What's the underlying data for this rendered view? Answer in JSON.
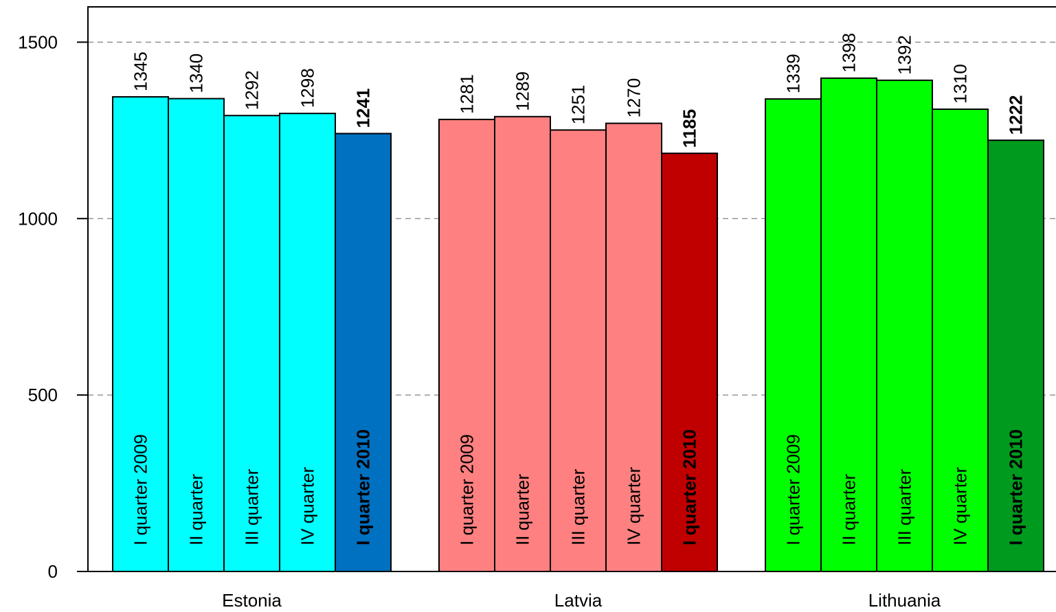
{
  "chart_data": {
    "type": "bar",
    "categories": [
      "Estonia",
      "Latvia",
      "Lithuania"
    ],
    "series": [
      {
        "name": "I quarter 2009",
        "values": [
          1345,
          1281,
          1339
        ],
        "bold": false
      },
      {
        "name": "II quarter",
        "values": [
          1340,
          1289,
          1398
        ],
        "bold": false
      },
      {
        "name": "III quarter",
        "values": [
          1292,
          1251,
          1392
        ],
        "bold": false
      },
      {
        "name": "IV quarter",
        "values": [
          1298,
          1270,
          1310
        ],
        "bold": false
      },
      {
        "name": "I quarter 2010",
        "values": [
          1241,
          1185,
          1222
        ],
        "bold": true
      }
    ],
    "colors": [
      [
        "#00ffff",
        "#00ffff",
        "#00ffff",
        "#00ffff",
        "#0070c0"
      ],
      [
        "#ff8080",
        "#ff8080",
        "#ff8080",
        "#ff8080",
        "#c00000"
      ],
      [
        "#00ff00",
        "#00ff00",
        "#00ff00",
        "#00ff00",
        "#009a1e"
      ]
    ],
    "ylim": [
      0,
      1500
    ],
    "yticks": [
      0,
      500,
      1000,
      1500
    ],
    "grid": "dashed horizontal",
    "xlabel": "",
    "ylabel": "",
    "title": ""
  }
}
